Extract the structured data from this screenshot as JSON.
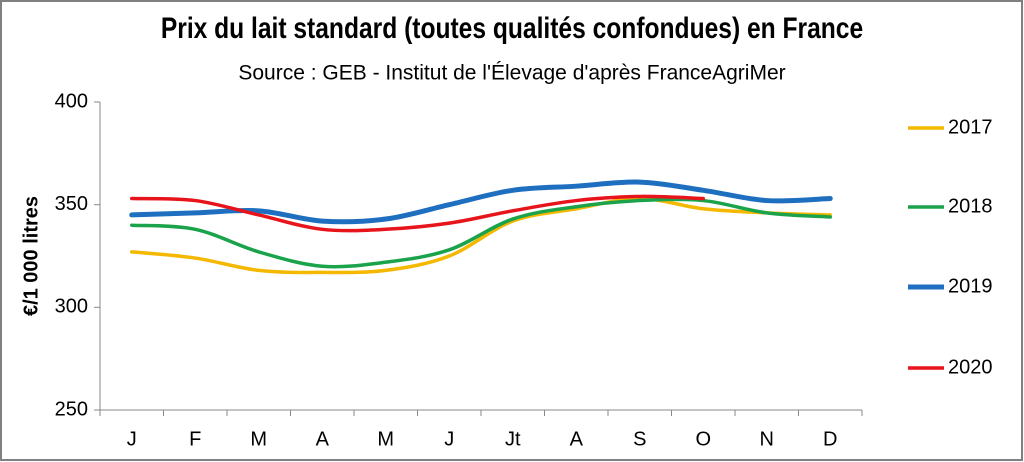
{
  "chart_data": {
    "type": "line",
    "title": "Prix du lait standard (toutes qualités confondues) en France",
    "subtitle": "Source : GEB - Institut de l'Élevage d'après FranceAgriMer",
    "y_label": "€/1 000 litres",
    "categories": [
      "J",
      "F",
      "M",
      "A",
      "M",
      "J",
      "Jt",
      "A",
      "S",
      "O",
      "N",
      "D"
    ],
    "series": [
      {
        "name": "2017",
        "color": "#f5b800",
        "values": [
          327,
          324,
          318,
          317,
          318,
          325,
          342,
          348,
          353,
          348,
          346,
          345
        ]
      },
      {
        "name": "2018",
        "color": "#1aa34a",
        "values": [
          340,
          338,
          327,
          320,
          322,
          328,
          343,
          349,
          352,
          352,
          346,
          344
        ]
      },
      {
        "name": "2019",
        "color": "#1f6fc0",
        "values": [
          345,
          346,
          347,
          342,
          343,
          350,
          357,
          359,
          361,
          357,
          352,
          353
        ]
      },
      {
        "name": "2020",
        "color": "#e8141b",
        "values": [
          353,
          352,
          345,
          338,
          338,
          341,
          347,
          352,
          354,
          353,
          null,
          null
        ]
      }
    ],
    "ylim": [
      250,
      400
    ],
    "yticks": [
      250,
      300,
      350,
      400
    ],
    "grid": false,
    "legend": "right"
  }
}
